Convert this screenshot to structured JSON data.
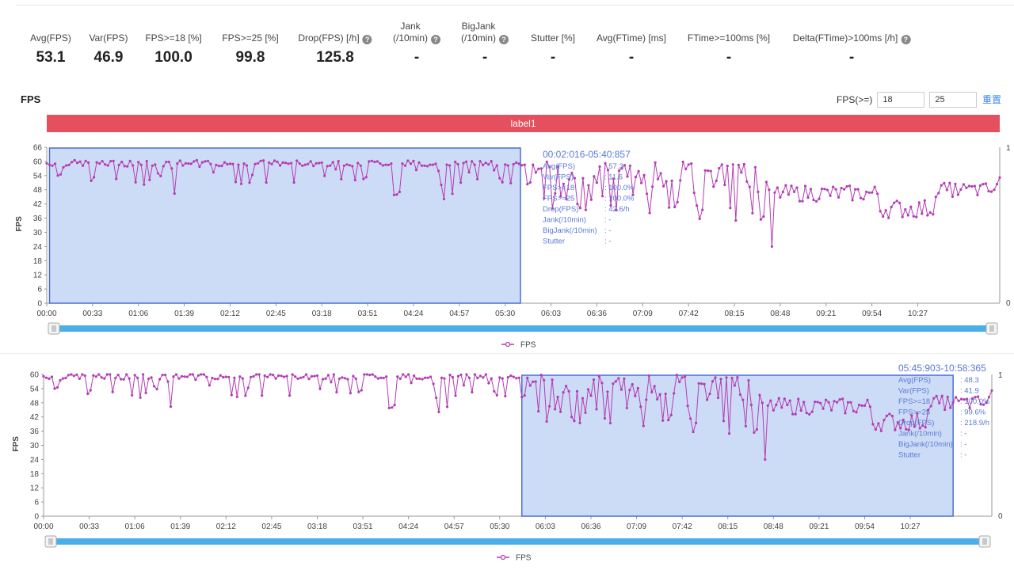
{
  "stats": [
    {
      "label": "Avg(FPS)",
      "value": "53.1",
      "help": false,
      "x": 64
    },
    {
      "label": "Var(FPS)",
      "value": "46.9",
      "help": false,
      "x": 137
    },
    {
      "label": "FPS>=18 [%]",
      "value": "100.0",
      "help": false,
      "x": 219
    },
    {
      "label": "FPS>=25 [%]",
      "value": "99.8",
      "help": false,
      "x": 316
    },
    {
      "label": "Drop(FPS) [/h]",
      "value": "125.8",
      "help": true,
      "x": 423
    },
    {
      "label": "Jank\n(/10min)",
      "value": "-",
      "help": true,
      "x": 526
    },
    {
      "label": "BigJank\n(/10min)",
      "value": "-",
      "help": true,
      "x": 612
    },
    {
      "label": "Stutter [%]",
      "value": "-",
      "help": false,
      "x": 698
    },
    {
      "label": "Avg(FTime) [ms]",
      "value": "-",
      "help": false,
      "x": 797
    },
    {
      "label": "FTime>=100ms [%]",
      "value": "-",
      "help": false,
      "x": 920
    },
    {
      "label": "Delta(FTime)>100ms [/h]",
      "value": "-",
      "help": true,
      "x": 1075
    }
  ],
  "section_title": "FPS",
  "filter": {
    "label": "FPS(>=)",
    "v1": "18",
    "v2": "25",
    "reset": "重置"
  },
  "label_bar": "label1",
  "colors": {
    "line": "#b43cb4",
    "selection_fill": "#cddcf6",
    "selection_border": "#4a6fd4",
    "slider": "#4aaee8",
    "label_bar": "#e5505f",
    "tooltip": "#5b79d6"
  },
  "chart_data": [
    {
      "type": "line",
      "ylabel": "FPS",
      "legend": "FPS",
      "ylim": [
        0,
        66
      ],
      "yticks": [
        0,
        6,
        12,
        18,
        24,
        30,
        36,
        42,
        48,
        54,
        60,
        66
      ],
      "right_axis_ticks": [
        "0",
        "1"
      ],
      "xticks": [
        "00:00",
        "00:33",
        "01:06",
        "01:39",
        "02:12",
        "02:45",
        "03:18",
        "03:51",
        "04:24",
        "04:57",
        "05:30",
        "06:03",
        "06:36",
        "07:09",
        "07:42",
        "08:15",
        "08:48",
        "09:21",
        "09:54",
        "10:27"
      ],
      "x_range_sec": [
        0,
        686
      ],
      "selection": {
        "start_sec": 2,
        "end_sec": 341
      },
      "tooltip": {
        "range": "00:02:016-05:40:857",
        "rows": [
          {
            "k": "Avg(FPS)",
            "v": ": 57.3"
          },
          {
            "k": "Var(FPS)",
            "v": ": 11.6"
          },
          {
            "k": "FPS>=18",
            "v": ": 100.0%"
          },
          {
            "k": "FPS>=25",
            "v": ": 100.0%"
          },
          {
            "k": "Drop(FPS)",
            "v": ": 42.6/h"
          },
          {
            "k": "Jank(/10min)",
            "v": ": -"
          },
          {
            "k": "BigJank(/10min)",
            "v": ": -"
          },
          {
            "k": "Stutter",
            "v": ": -"
          }
        ]
      }
    },
    {
      "type": "line",
      "ylabel": "FPS",
      "legend": "FPS",
      "ylim": [
        0,
        60
      ],
      "yticks": [
        0,
        6,
        12,
        18,
        24,
        30,
        36,
        42,
        48,
        54,
        60
      ],
      "right_axis_ticks": [
        "0",
        "1"
      ],
      "xticks": [
        "00:00",
        "00:33",
        "01:06",
        "01:39",
        "02:12",
        "02:45",
        "03:18",
        "03:51",
        "04:24",
        "04:57",
        "05:30",
        "06:03",
        "06:36",
        "07:09",
        "07:42",
        "08:15",
        "08:48",
        "09:21",
        "09:54",
        "10:27"
      ],
      "x_range_sec": [
        0,
        686
      ],
      "selection": {
        "start_sec": 346,
        "end_sec": 658
      },
      "tooltip": {
        "range": "05:45:903-10:58:365",
        "rows": [
          {
            "k": "Avg(FPS)",
            "v": ": 48.3"
          },
          {
            "k": "Var(FPS)",
            "v": ": 41.9"
          },
          {
            "k": "FPS>=18",
            "v": ": 100.0%"
          },
          {
            "k": "FPS>=25",
            "v": ": 99.6%"
          },
          {
            "k": "Drop(FPS)",
            "v": ": 218.9/h"
          },
          {
            "k": "Jank(/10min)",
            "v": ": -"
          },
          {
            "k": "BigJank(/10min)",
            "v": ": -"
          },
          {
            "k": "Stutter",
            "v": ": -"
          }
        ]
      }
    }
  ]
}
